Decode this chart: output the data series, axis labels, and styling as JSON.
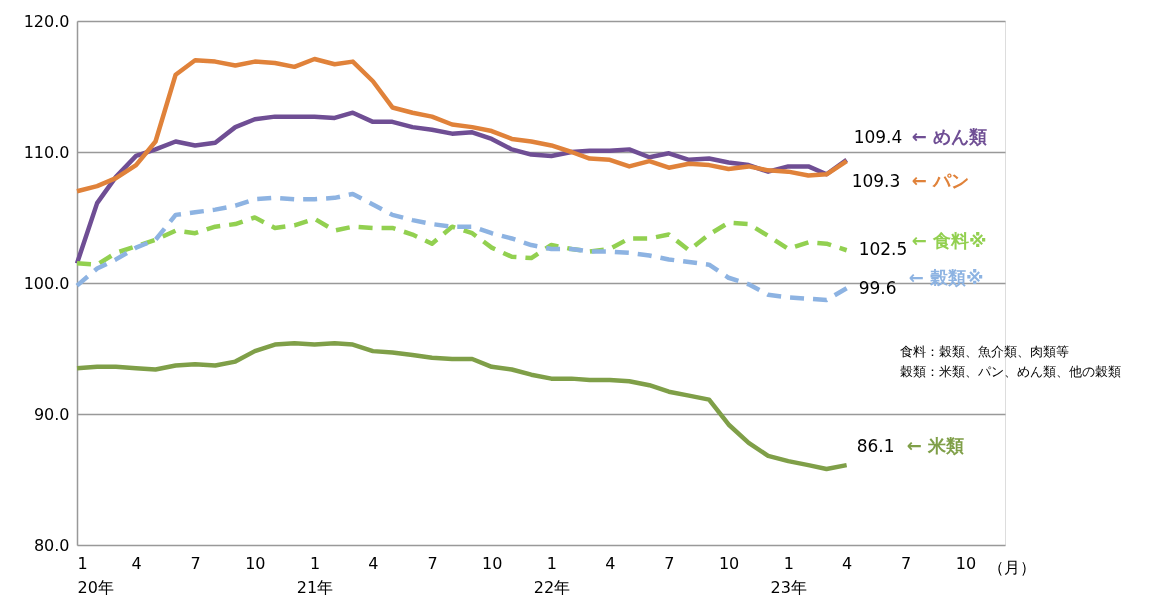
{
  "chart_data": {
    "type": "line",
    "x": [
      "2020-01",
      "2020-02",
      "2020-03",
      "2020-04",
      "2020-05",
      "2020-06",
      "2020-07",
      "2020-08",
      "2020-09",
      "2020-10",
      "2020-11",
      "2020-12",
      "2021-01",
      "2021-02",
      "2021-03",
      "2021-04",
      "2021-05",
      "2021-06",
      "2021-07",
      "2021-08",
      "2021-09",
      "2021-10",
      "2021-11",
      "2021-12",
      "2022-01",
      "2022-02",
      "2022-03",
      "2022-04",
      "2022-05",
      "2022-06",
      "2022-07",
      "2022-08",
      "2022-09",
      "2022-10",
      "2022-11",
      "2022-12",
      "2023-01",
      "2023-02",
      "2023-03",
      "2023-04"
    ],
    "series": [
      {
        "name": "← めん類",
        "color": "#6f4e94",
        "line_style": "solid",
        "values": [
          101.5,
          106.1,
          108.1,
          109.7,
          110.2,
          110.8,
          110.5,
          110.7,
          111.9,
          112.5,
          112.7,
          112.7,
          112.7,
          112.6,
          113.0,
          112.3,
          112.3,
          111.9,
          111.7,
          111.4,
          111.5,
          111.0,
          110.2,
          109.8,
          109.7,
          110.0,
          110.1,
          110.1,
          110.2,
          109.6,
          109.9,
          109.4,
          109.5,
          109.2,
          109.0,
          108.5,
          108.9,
          108.9,
          108.3,
          109.4
        ],
        "value_labels": [
          null,
          null,
          null,
          null,
          null,
          null,
          null,
          null,
          null,
          null,
          null,
          null,
          null,
          null,
          null,
          null,
          null,
          null,
          null,
          null,
          null,
          null,
          null,
          null,
          null,
          null,
          null,
          null,
          null,
          null,
          null,
          null,
          null,
          null,
          null,
          null,
          null,
          null,
          null,
          "109.4"
        ]
      },
      {
        "name": "← パン",
        "color": "#e0823a",
        "line_style": "solid",
        "values": [
          107.0,
          107.4,
          108.0,
          109.0,
          110.8,
          115.9,
          117.0,
          116.9,
          116.6,
          116.9,
          116.8,
          116.5,
          117.1,
          116.7,
          116.9,
          115.4,
          113.4,
          113.0,
          112.7,
          112.1,
          111.9,
          111.6,
          111.0,
          110.8,
          110.5,
          110.0,
          109.5,
          109.4,
          108.9,
          109.3,
          108.8,
          109.1,
          109.0,
          108.7,
          108.9,
          108.6,
          108.5,
          108.2,
          108.3,
          109.3
        ],
        "value_labels": [
          null,
          null,
          null,
          null,
          null,
          null,
          null,
          null,
          null,
          null,
          null,
          null,
          null,
          null,
          null,
          null,
          null,
          null,
          null,
          null,
          null,
          null,
          null,
          null,
          null,
          null,
          null,
          null,
          null,
          null,
          null,
          null,
          null,
          null,
          null,
          null,
          null,
          null,
          null,
          "109.3"
        ]
      },
      {
        "name": "← 食料※",
        "color": "#92d050",
        "line_style": "dashed",
        "values": [
          101.5,
          101.4,
          102.3,
          102.8,
          103.3,
          104.0,
          103.8,
          104.3,
          104.5,
          105.0,
          104.2,
          104.4,
          104.9,
          104.0,
          104.3,
          104.2,
          104.2,
          103.7,
          103.0,
          104.3,
          103.8,
          102.7,
          102.0,
          101.9,
          102.9,
          102.6,
          102.4,
          102.6,
          103.4,
          103.4,
          103.7,
          102.5,
          103.7,
          104.6,
          104.5,
          103.6,
          102.6,
          103.1,
          103.0,
          102.5
        ],
        "value_labels": [
          null,
          null,
          null,
          null,
          null,
          null,
          null,
          null,
          null,
          null,
          null,
          null,
          null,
          null,
          null,
          null,
          null,
          null,
          null,
          null,
          null,
          null,
          null,
          null,
          null,
          null,
          null,
          null,
          null,
          null,
          null,
          null,
          null,
          null,
          null,
          null,
          null,
          null,
          null,
          "102.5"
        ]
      },
      {
        "name": "← 穀類※",
        "color": "#8db3e2",
        "line_style": "dashed",
        "values": [
          99.8,
          101.1,
          101.8,
          102.7,
          103.3,
          105.2,
          105.4,
          105.6,
          105.9,
          106.4,
          106.5,
          106.4,
          106.4,
          106.5,
          106.8,
          106.0,
          105.2,
          104.8,
          104.5,
          104.3,
          104.3,
          103.8,
          103.4,
          102.9,
          102.6,
          102.6,
          102.4,
          102.4,
          102.3,
          102.1,
          101.8,
          101.6,
          101.4,
          100.4,
          99.9,
          99.1,
          98.9,
          98.8,
          98.7,
          99.6
        ],
        "value_labels": [
          null,
          null,
          null,
          null,
          null,
          null,
          null,
          null,
          null,
          null,
          null,
          null,
          null,
          null,
          null,
          null,
          null,
          null,
          null,
          null,
          null,
          null,
          null,
          null,
          null,
          null,
          null,
          null,
          null,
          null,
          null,
          null,
          null,
          null,
          null,
          null,
          null,
          null,
          null,
          "99.6"
        ]
      },
      {
        "name": "← 米類",
        "color": "#7f9f48",
        "line_style": "solid",
        "values": [
          93.5,
          93.6,
          93.6,
          93.5,
          93.4,
          93.7,
          93.8,
          93.7,
          94.0,
          94.8,
          95.3,
          95.4,
          95.3,
          95.4,
          95.3,
          94.8,
          94.7,
          94.5,
          94.3,
          94.2,
          94.2,
          93.6,
          93.4,
          93.0,
          92.7,
          92.7,
          92.6,
          92.6,
          92.5,
          92.2,
          91.7,
          91.4,
          91.1,
          89.2,
          87.8,
          86.8,
          86.4,
          86.1,
          85.8,
          86.1
        ],
        "value_labels": [
          null,
          null,
          null,
          null,
          null,
          null,
          null,
          null,
          null,
          null,
          null,
          null,
          null,
          null,
          null,
          null,
          null,
          null,
          null,
          null,
          null,
          null,
          null,
          null,
          null,
          null,
          null,
          null,
          null,
          null,
          null,
          null,
          null,
          null,
          null,
          null,
          null,
          null,
          null,
          "86.1"
        ]
      }
    ],
    "xlabel": "（月）",
    "xlim": [
      "2020-01",
      "2023-12"
    ],
    "xticks": [
      {
        "value": "2020-01",
        "label": "1\n20年"
      },
      {
        "value": "2020-04",
        "label": "4"
      },
      {
        "value": "2020-07",
        "label": "7"
      },
      {
        "value": "2020-10",
        "label": "10"
      },
      {
        "value": "2021-01",
        "label": "1\n21年"
      },
      {
        "value": "2021-04",
        "label": "4"
      },
      {
        "value": "2021-07",
        "label": "7"
      },
      {
        "value": "2021-10",
        "label": "10"
      },
      {
        "value": "2022-01",
        "label": "1\n22年"
      },
      {
        "value": "2022-04",
        "label": "4"
      },
      {
        "value": "2022-07",
        "label": "7"
      },
      {
        "value": "2022-10",
        "label": "10"
      },
      {
        "value": "2023-01",
        "label": "1\n23年"
      },
      {
        "value": "2023-04",
        "label": "4"
      },
      {
        "value": "2023-07",
        "label": "7"
      },
      {
        "value": "2023-10",
        "label": "10"
      }
    ],
    "ylim": [
      80,
      120
    ],
    "yticks": [
      {
        "value": 80,
        "label": "80.0"
      },
      {
        "value": 90,
        "label": "90.0"
      },
      {
        "value": 100,
        "label": "100.0"
      },
      {
        "value": 110,
        "label": "110.0"
      },
      {
        "value": 120,
        "label": "120.0"
      }
    ],
    "grid": "y",
    "legend": false,
    "marker": "none",
    "annotations": [
      "食料：穀類、魚介類、肉類等",
      "穀類：米類、パン、めん類、他の穀類"
    ]
  }
}
